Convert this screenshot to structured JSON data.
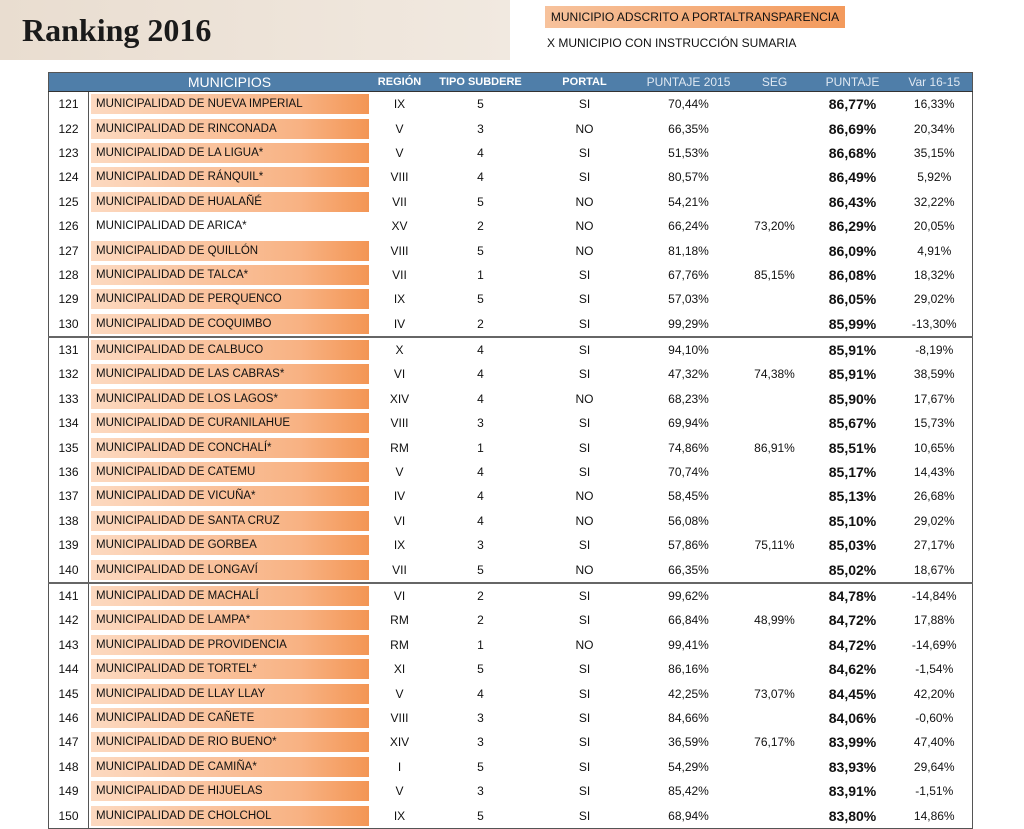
{
  "header": {
    "title": "Ranking 2016",
    "legend_portal": "MUNICIPIO ADSCRITO A PORTALTRANSPARENCIA",
    "legend_sumaria": "X MUNICIPIO CON INSTRUCCIÓN SUMARIA"
  },
  "table": {
    "columns": [
      "MUNICIPIOS",
      "REGIÓN",
      "TIPO SUBDERE",
      "PORTAL",
      "PUNTAJE 2015",
      "SEG",
      "PUNTAJE",
      "Var 16-15"
    ],
    "rows": [
      {
        "rank": 121,
        "name": "MUNICIPALIDAD DE NUEVA IMPERIAL",
        "portal_member": true,
        "region": "IX",
        "tipo": 5,
        "portal": "SI",
        "p2015": "70,44%",
        "puntaje": "86,77%",
        "var": "16,33%"
      },
      {
        "rank": 122,
        "name": "MUNICIPALIDAD DE RINCONADA",
        "portal_member": true,
        "region": "V",
        "tipo": 3,
        "portal": "NO",
        "p2015": "66,35%",
        "puntaje": "86,69%",
        "var": "20,34%"
      },
      {
        "rank": 123,
        "name": "MUNICIPALIDAD DE LA LIGUA*",
        "portal_member": true,
        "region": "V",
        "tipo": 4,
        "portal": "SI",
        "p2015": "51,53%",
        "puntaje": "86,68%",
        "var": "35,15%"
      },
      {
        "rank": 124,
        "name": "MUNICIPALIDAD DE RÁNQUIL*",
        "portal_member": true,
        "region": "VIII",
        "tipo": 4,
        "portal": "SI",
        "p2015": "80,57%",
        "puntaje": "86,49%",
        "var": "5,92%"
      },
      {
        "rank": 125,
        "name": "MUNICIPALIDAD DE HUALAÑÉ",
        "portal_member": true,
        "region": "VII",
        "tipo": 5,
        "portal": "NO",
        "p2015": "54,21%",
        "puntaje": "86,43%",
        "var": "32,22%"
      },
      {
        "rank": 126,
        "name": "MUNICIPALIDAD DE ARICA*",
        "portal_member": false,
        "region": "XV",
        "tipo": 2,
        "portal": "NO",
        "p2015": "66,24%",
        "seg": "73,20%",
        "puntaje": "86,29%",
        "var": "20,05%"
      },
      {
        "rank": 127,
        "name": "MUNICIPALIDAD DE QUILLÓN",
        "portal_member": true,
        "region": "VIII",
        "tipo": 5,
        "portal": "NO",
        "p2015": "81,18%",
        "puntaje": "86,09%",
        "var": "4,91%"
      },
      {
        "rank": 128,
        "name": "MUNICIPALIDAD DE TALCA*",
        "portal_member": true,
        "region": "VII",
        "tipo": 1,
        "portal": "SI",
        "p2015": "67,76%",
        "seg": "85,15%",
        "puntaje": "86,08%",
        "var": "18,32%"
      },
      {
        "rank": 129,
        "name": "MUNICIPALIDAD DE PERQUENCO",
        "portal_member": true,
        "region": "IX",
        "tipo": 5,
        "portal": "SI",
        "p2015": "57,03%",
        "puntaje": "86,05%",
        "var": "29,02%"
      },
      {
        "rank": 130,
        "name": "MUNICIPALIDAD DE COQUIMBO",
        "portal_member": true,
        "region": "IV",
        "tipo": 2,
        "portal": "SI",
        "p2015": "99,29%",
        "puntaje": "85,99%",
        "var": "-13,30%"
      },
      {
        "rank": 131,
        "name": "MUNICIPALIDAD DE CALBUCO",
        "portal_member": true,
        "region": "X",
        "tipo": 4,
        "portal": "SI",
        "p2015": "94,10%",
        "puntaje": "85,91%",
        "var": "-8,19%"
      },
      {
        "rank": 132,
        "name": "MUNICIPALIDAD DE LAS CABRAS*",
        "portal_member": true,
        "region": "VI",
        "tipo": 4,
        "portal": "SI",
        "p2015": "47,32%",
        "seg": "74,38%",
        "puntaje": "85,91%",
        "var": "38,59%"
      },
      {
        "rank": 133,
        "name": "MUNICIPALIDAD DE LOS LAGOS*",
        "portal_member": true,
        "region": "XIV",
        "tipo": 4,
        "portal": "NO",
        "p2015": "68,23%",
        "puntaje": "85,90%",
        "var": "17,67%"
      },
      {
        "rank": 134,
        "name": "MUNICIPALIDAD DE CURANILAHUE",
        "portal_member": true,
        "region": "VIII",
        "tipo": 3,
        "portal": "SI",
        "p2015": "69,94%",
        "puntaje": "85,67%",
        "var": "15,73%"
      },
      {
        "rank": 135,
        "name": "MUNICIPALIDAD DE CONCHALÍ*",
        "portal_member": true,
        "region": "RM",
        "tipo": 1,
        "portal": "SI",
        "p2015": "74,86%",
        "seg": "86,91%",
        "puntaje": "85,51%",
        "var": "10,65%"
      },
      {
        "rank": 136,
        "name": "MUNICIPALIDAD DE CATEMU",
        "portal_member": true,
        "region": "V",
        "tipo": 4,
        "portal": "SI",
        "p2015": "70,74%",
        "puntaje": "85,17%",
        "var": "14,43%"
      },
      {
        "rank": 137,
        "name": "MUNICIPALIDAD DE VICUÑA*",
        "portal_member": true,
        "region": "IV",
        "tipo": 4,
        "portal": "NO",
        "p2015": "58,45%",
        "puntaje": "85,13%",
        "var": "26,68%"
      },
      {
        "rank": 138,
        "name": "MUNICIPALIDAD DE SANTA CRUZ",
        "portal_member": true,
        "region": "VI",
        "tipo": 4,
        "portal": "NO",
        "p2015": "56,08%",
        "puntaje": "85,10%",
        "var": "29,02%"
      },
      {
        "rank": 139,
        "name": "MUNICIPALIDAD DE GORBEA",
        "portal_member": true,
        "region": "IX",
        "tipo": 3,
        "portal": "SI",
        "p2015": "57,86%",
        "seg": "75,11%",
        "puntaje": "85,03%",
        "var": "27,17%"
      },
      {
        "rank": 140,
        "name": "MUNICIPALIDAD DE LONGAVÍ",
        "portal_member": true,
        "region": "VII",
        "tipo": 5,
        "portal": "NO",
        "p2015": "66,35%",
        "puntaje": "85,02%",
        "var": "18,67%"
      },
      {
        "rank": 141,
        "name": "MUNICIPALIDAD DE MACHALÍ",
        "portal_member": true,
        "region": "VI",
        "tipo": 2,
        "portal": "SI",
        "p2015": "99,62%",
        "puntaje": "84,78%",
        "var": "-14,84%"
      },
      {
        "rank": 142,
        "name": "MUNICIPALIDAD DE LAMPA*",
        "portal_member": true,
        "region": "RM",
        "tipo": 2,
        "portal": "SI",
        "p2015": "66,84%",
        "seg": "48,99%",
        "puntaje": "84,72%",
        "var": "17,88%"
      },
      {
        "rank": 143,
        "name": "MUNICIPALIDAD DE PROVIDENCIA",
        "portal_member": true,
        "region": "RM",
        "tipo": 1,
        "portal": "NO",
        "p2015": "99,41%",
        "puntaje": "84,72%",
        "var": "-14,69%"
      },
      {
        "rank": 144,
        "name": "MUNICIPALIDAD DE TORTEL*",
        "portal_member": true,
        "region": "XI",
        "tipo": 5,
        "portal": "SI",
        "p2015": "86,16%",
        "puntaje": "84,62%",
        "var": "-1,54%"
      },
      {
        "rank": 145,
        "name": "MUNICIPALIDAD DE LLAY LLAY",
        "portal_member": true,
        "region": "V",
        "tipo": 4,
        "portal": "SI",
        "p2015": "42,25%",
        "seg": "73,07%",
        "puntaje": "84,45%",
        "var": "42,20%"
      },
      {
        "rank": 146,
        "name": "MUNICIPALIDAD DE CAÑETE",
        "portal_member": true,
        "region": "VIII",
        "tipo": 3,
        "portal": "SI",
        "p2015": "84,66%",
        "puntaje": "84,06%",
        "var": "-0,60%"
      },
      {
        "rank": 147,
        "name": "MUNICIPALIDAD DE RIO BUENO*",
        "portal_member": true,
        "region": "XIV",
        "tipo": 3,
        "portal": "SI",
        "p2015": "36,59%",
        "seg": "76,17%",
        "puntaje": "83,99%",
        "var": "47,40%"
      },
      {
        "rank": 148,
        "name": "MUNICIPALIDAD DE CAMIÑA*",
        "portal_member": true,
        "region": "I",
        "tipo": 5,
        "portal": "SI",
        "p2015": "54,29%",
        "puntaje": "83,93%",
        "var": "29,64%"
      },
      {
        "rank": 149,
        "name": "MUNICIPALIDAD DE HIJUELAS",
        "portal_member": true,
        "region": "V",
        "tipo": 3,
        "portal": "SI",
        "p2015": "85,42%",
        "puntaje": "83,91%",
        "var": "-1,51%"
      },
      {
        "rank": 150,
        "name": "MUNICIPALIDAD DE CHOLCHOL",
        "portal_member": true,
        "region": "IX",
        "tipo": 5,
        "portal": "SI",
        "p2015": "68,94%",
        "puntaje": "83,80%",
        "var": "14,86%"
      }
    ]
  }
}
